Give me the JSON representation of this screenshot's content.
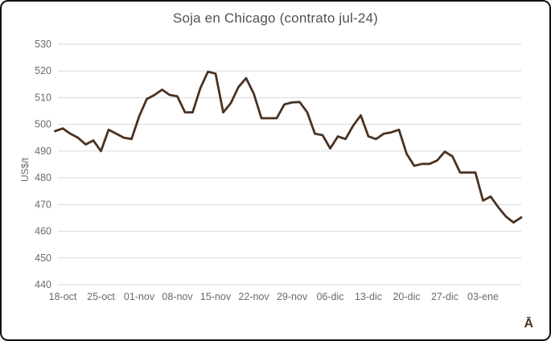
{
  "window": {
    "background_color": "#ffffff",
    "border_color": "#111111"
  },
  "watermark": "Ā",
  "watermark_color": "#4a3222",
  "chart_data": {
    "type": "line",
    "title": "Soja en Chicago (contrato jul-24)",
    "xlabel": "",
    "ylabel": "US$/t",
    "ylim": [
      440,
      530
    ],
    "yticks": [
      440,
      450,
      460,
      470,
      480,
      490,
      500,
      510,
      520,
      530
    ],
    "grid": true,
    "legend": false,
    "title_color": "#56504e",
    "axis_text_color": "#6f6a6a",
    "gridline_color": "#d9d9d9",
    "line_color": "#4a3222",
    "x_tick_labels": [
      "18-oct",
      "25-oct",
      "01-nov",
      "08-nov",
      "15-nov",
      "22-nov",
      "29-nov",
      "06-dic",
      "13-dic",
      "20-dic",
      "27-dic",
      "03-ene"
    ],
    "x_tick_indices": [
      1,
      6,
      11,
      16,
      21,
      26,
      31,
      36,
      41,
      46,
      51,
      56
    ],
    "dates": [
      "17-oct",
      "18-oct",
      "19-oct",
      "20-oct",
      "23-oct",
      "24-oct",
      "25-oct",
      "26-oct",
      "27-oct",
      "30-oct",
      "31-oct",
      "01-nov",
      "02-nov",
      "03-nov",
      "06-nov",
      "07-nov",
      "08-nov",
      "09-nov",
      "10-nov",
      "13-nov",
      "14-nov",
      "15-nov",
      "16-nov",
      "17-nov",
      "20-nov",
      "21-nov",
      "22-nov",
      "23-nov",
      "24-nov",
      "27-nov",
      "28-nov",
      "29-nov",
      "30-nov",
      "01-dic",
      "04-dic",
      "05-dic",
      "06-dic",
      "07-dic",
      "08-dic",
      "11-dic",
      "12-dic",
      "13-dic",
      "14-dic",
      "15-dic",
      "18-dic",
      "19-dic",
      "20-dic",
      "21-dic",
      "22-dic",
      "25-dic",
      "26-dic",
      "27-dic",
      "28-dic",
      "29-dic",
      "01-ene",
      "02-ene",
      "03-ene",
      "04-ene",
      "05-ene",
      "08-ene",
      "09-ene",
      "10-ene"
    ],
    "values": [
      497.5,
      498.5,
      496.5,
      495,
      492.5,
      494,
      490,
      498,
      496.5,
      495,
      494.5,
      503,
      509.5,
      511,
      513,
      511,
      510.5,
      504.5,
      504.5,
      513.5,
      519.7,
      519,
      504.5,
      508,
      514,
      517.3,
      511.5,
      502.3,
      502.3,
      502.3,
      507.5,
      508.2,
      508.4,
      504.5,
      496.5,
      496,
      491,
      495.5,
      494.5,
      499.5,
      503.4,
      495.5,
      494.5,
      496.5,
      497,
      498,
      489,
      484.5,
      485.2,
      485.2,
      486.5,
      489.8,
      488,
      482,
      482,
      482,
      471.5,
      473,
      469,
      465.5,
      463.3,
      465.2
    ]
  }
}
